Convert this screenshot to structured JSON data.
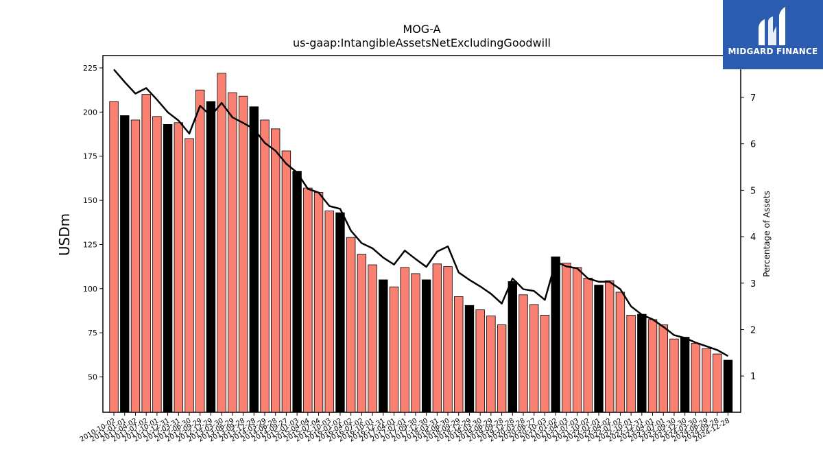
{
  "chart_data": {
    "type": "bar",
    "title": "MOG-A",
    "subtitle": "us-gaap:IntangibleAssetsNetExcludingGoodwill",
    "ylabel": "USDm",
    "y2label": "Percentage of Assets",
    "ylim": [
      30,
      232
    ],
    "y2lim": [
      0.22,
      7.9
    ],
    "yticks": [
      50,
      75,
      100,
      125,
      150,
      175,
      200,
      225
    ],
    "y2ticks": [
      1,
      2,
      3,
      4,
      5,
      6,
      7
    ],
    "grid": false,
    "categories": [
      "2010-10-02",
      "2011-01-01",
      "2011-04-02",
      "2011-07-02",
      "2011-10-01",
      "2011-12-31",
      "2012-03-31",
      "2012-06-30",
      "2012-09-29",
      "2012-12-29",
      "2013-03-30",
      "2013-06-29",
      "2013-09-28",
      "2013-12-28",
      "2014-03-29",
      "2014-06-28",
      "2014-09-27",
      "2015-01-03",
      "2015-04-04",
      "2015-07-04",
      "2015-10-03",
      "2016-01-02",
      "2016-04-02",
      "2016-07-02",
      "2016-10-01",
      "2016-12-31",
      "2017-04-01",
      "2017-07-01",
      "2017-09-30",
      "2017-12-30",
      "2018-03-31",
      "2018-06-30",
      "2018-09-29",
      "2018-12-29",
      "2019-03-30",
      "2019-06-29",
      "2019-09-28",
      "2019-12-28",
      "2020-03-28",
      "2020-06-27",
      "2020-10-03",
      "2021-01-02",
      "2021-04-03",
      "2021-07-03",
      "2021-10-02",
      "2022-01-01",
      "2022-04-02",
      "2022-07-02",
      "2022-10-01",
      "2022-12-31",
      "2023-04-01",
      "2023-07-01",
      "2023-09-30",
      "2023-12-30",
      "2024-03-30",
      "2024-06-29",
      "2024-09-28",
      "2024-12-28"
    ],
    "values": [
      206,
      198,
      195.5,
      210,
      197.5,
      193,
      194,
      185,
      212.5,
      206,
      222,
      211,
      209,
      203,
      195.5,
      190.5,
      178,
      166.5,
      157,
      154.5,
      144,
      143,
      129,
      119.5,
      113.5,
      105,
      101,
      112,
      108.5,
      105,
      114,
      112.5,
      95.5,
      90.5,
      88,
      84.5,
      79.5,
      104,
      96.5,
      91,
      85,
      118,
      114.5,
      112,
      106,
      102,
      104.5,
      98,
      85,
      85.5,
      82.5,
      79.5,
      71.5,
      72.5,
      69,
      66,
      63,
      59.5
    ],
    "fiscal_year_end": [
      false,
      true,
      false,
      false,
      false,
      true,
      false,
      false,
      false,
      true,
      false,
      false,
      false,
      true,
      false,
      false,
      false,
      true,
      false,
      false,
      false,
      true,
      false,
      false,
      false,
      true,
      false,
      false,
      false,
      true,
      false,
      false,
      false,
      true,
      false,
      false,
      false,
      true,
      false,
      false,
      false,
      true,
      false,
      false,
      false,
      true,
      false,
      false,
      false,
      true,
      false,
      false,
      false,
      true,
      false,
      false,
      false,
      true
    ],
    "pct_of_assets": [
      7.6,
      7.33,
      7.08,
      7.2,
      6.95,
      6.68,
      6.5,
      6.22,
      6.82,
      6.6,
      6.88,
      6.57,
      6.45,
      6.32,
      6.02,
      5.85,
      5.57,
      5.38,
      5.03,
      4.95,
      4.66,
      4.6,
      4.13,
      3.86,
      3.75,
      3.55,
      3.4,
      3.7,
      3.52,
      3.35,
      3.68,
      3.79,
      3.23,
      3.07,
      2.93,
      2.77,
      2.56,
      3.1,
      2.87,
      2.83,
      2.64,
      3.46,
      3.36,
      3.32,
      3.1,
      3.03,
      3.03,
      2.87,
      2.5,
      2.32,
      2.22,
      2.06,
      1.88,
      1.82,
      1.72,
      1.64,
      1.56,
      1.43
    ],
    "colors": {
      "bar": "#fa8072",
      "bar_fiscal_year_end": "#000000",
      "line": "#000000"
    }
  },
  "branding": {
    "name": "MIDGARD FINANCE",
    "bg_color": "#2b5cb0",
    "icon": "midgard-logo-icon"
  }
}
